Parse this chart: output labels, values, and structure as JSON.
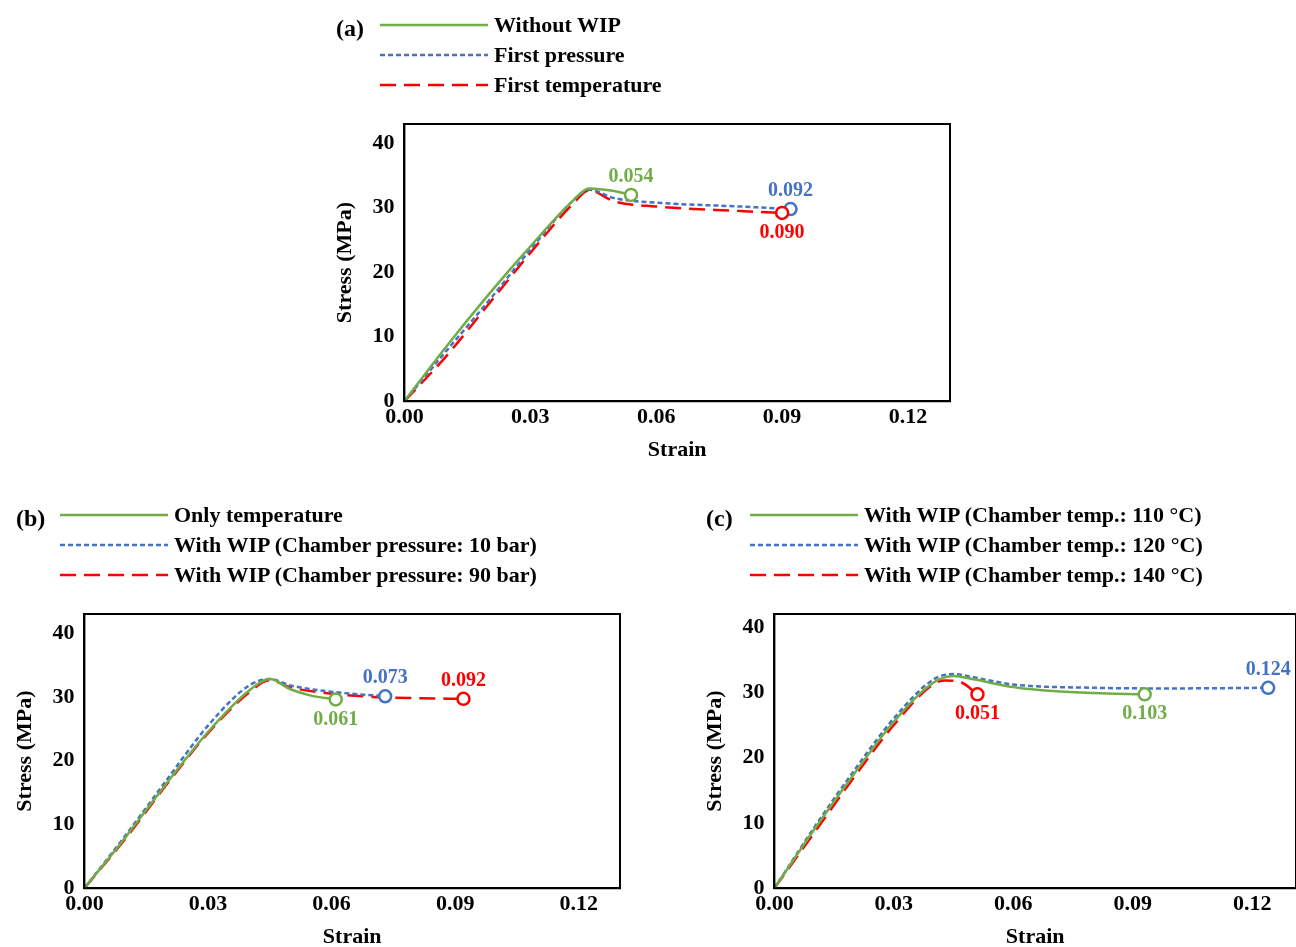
{
  "chart_data": [
    {
      "type": "line",
      "title": "(a)",
      "xlabel": "Strain",
      "ylabel": "Stress (MPa)",
      "xlim": [
        0,
        0.13
      ],
      "ylim": [
        0,
        43
      ],
      "xticks": [
        {
          "value": 0,
          "label": "0.00"
        },
        {
          "value": 0.03,
          "label": "0.03"
        },
        {
          "value": 0.06,
          "label": "0.06"
        },
        {
          "value": 0.09,
          "label": "0.09"
        },
        {
          "value": 0.12,
          "label": "0.12"
        }
      ],
      "yticks": [
        0,
        10,
        20,
        30,
        40
      ],
      "grid": false,
      "legend": "top",
      "series": [
        {
          "name": "Without WIP",
          "color": "#70ad47",
          "line_style": "solid",
          "x": [
            0,
            0.01,
            0.02,
            0.03,
            0.04,
            0.044,
            0.05,
            0.054
          ],
          "values": [
            0,
            8.5,
            16.5,
            24,
            31,
            33,
            32.6,
            32
          ]
        },
        {
          "name": "First pressure",
          "color": "#4472c4",
          "line_style": "dotted",
          "x": [
            0,
            0.01,
            0.02,
            0.03,
            0.04,
            0.044,
            0.05,
            0.06,
            0.08,
            0.092
          ],
          "values": [
            0,
            7.8,
            15.5,
            23.5,
            31,
            32.8,
            31.5,
            30.8,
            30.2,
            29.8
          ]
        },
        {
          "name": "First temperature",
          "color": "#ff0000",
          "line_style": "dashed",
          "x": [
            0,
            0.01,
            0.02,
            0.03,
            0.04,
            0.044,
            0.05,
            0.06,
            0.08,
            0.09
          ],
          "values": [
            0,
            7,
            15,
            23,
            30.5,
            32.7,
            31,
            30.2,
            29.5,
            29.2
          ]
        }
      ],
      "annotations": [
        {
          "text": "0.054",
          "x": 0.054,
          "y": 32
        },
        {
          "text": "0.092",
          "x": 0.092,
          "y": 29.8
        },
        {
          "text": "0.090",
          "x": 0.09,
          "y": 29.2
        }
      ]
    },
    {
      "type": "line",
      "title": "(b)",
      "xlabel": "Strain",
      "ylabel": "Stress (MPa)",
      "xlim": [
        0,
        0.13
      ],
      "ylim": [
        0,
        43
      ],
      "xticks": [
        {
          "value": 0,
          "label": "0.00"
        },
        {
          "value": 0.03,
          "label": "0.03"
        },
        {
          "value": 0.06,
          "label": "0.06"
        },
        {
          "value": 0.09,
          "label": "0.09"
        },
        {
          "value": 0.12,
          "label": "0.12"
        }
      ],
      "yticks": [
        0,
        10,
        20,
        30,
        40
      ],
      "grid": false,
      "legend": "top",
      "series": [
        {
          "name": "Only temperature",
          "color": "#70ad47",
          "line_style": "solid",
          "x": [
            0,
            0.01,
            0.02,
            0.03,
            0.04,
            0.045,
            0.05,
            0.055,
            0.061
          ],
          "values": [
            0,
            8,
            16.5,
            24.5,
            31,
            32.8,
            31.2,
            30.2,
            29.6
          ]
        },
        {
          "name": "With WIP (Chamber pressure: 10 bar)",
          "color": "#4472c4",
          "line_style": "dotted",
          "x": [
            0,
            0.01,
            0.02,
            0.03,
            0.04,
            0.045,
            0.05,
            0.06,
            0.073
          ],
          "values": [
            0,
            8.3,
            17,
            25.5,
            31.8,
            32.8,
            31.8,
            30.8,
            30.1
          ]
        },
        {
          "name": "With WIP (Chamber pressure: 90 bar)",
          "color": "#ff0000",
          "line_style": "dashed",
          "x": [
            0,
            0.01,
            0.02,
            0.03,
            0.04,
            0.045,
            0.05,
            0.06,
            0.07,
            0.08,
            0.092
          ],
          "values": [
            0,
            7.8,
            16.3,
            24.3,
            30.7,
            32.6,
            31.5,
            30.5,
            30,
            29.8,
            29.7
          ]
        }
      ],
      "annotations": [
        {
          "text": "0.061",
          "x": 0.061,
          "y": 29.6
        },
        {
          "text": "0.073",
          "x": 0.073,
          "y": 30.1
        },
        {
          "text": "0.092",
          "x": 0.092,
          "y": 29.7
        }
      ]
    },
    {
      "type": "line",
      "title": "(c)",
      "xlabel": "Strain",
      "ylabel": "Stress (MPa)",
      "xlim": [
        0,
        0.131
      ],
      "ylim": [
        0,
        42
      ],
      "xticks": [
        {
          "value": 0,
          "label": "0.00"
        },
        {
          "value": 0.03,
          "label": "0.03"
        },
        {
          "value": 0.06,
          "label": "0.06"
        },
        {
          "value": 0.09,
          "label": "0.09"
        },
        {
          "value": 0.12,
          "label": "0.12"
        }
      ],
      "yticks": [
        0,
        10,
        20,
        30,
        40
      ],
      "grid": false,
      "legend": "top",
      "series": [
        {
          "name": "With WIP (Chamber temp.: 110 °C)",
          "color": "#70ad47",
          "line_style": "solid",
          "x": [
            0,
            0.01,
            0.02,
            0.03,
            0.04,
            0.045,
            0.05,
            0.06,
            0.07,
            0.08,
            0.093
          ],
          "values": [
            0,
            9,
            17.5,
            25.5,
            31.5,
            32.5,
            32,
            30.8,
            30.2,
            29.9,
            29.7
          ]
        },
        {
          "name": "With WIP (Chamber temp.: 120 °C)",
          "color": "#4472c4",
          "line_style": "dotted",
          "x": [
            0,
            0.01,
            0.02,
            0.03,
            0.04,
            0.045,
            0.05,
            0.06,
            0.08,
            0.1,
            0.124
          ],
          "values": [
            0,
            9.3,
            18,
            26,
            32,
            32.8,
            32.3,
            31.2,
            30.7,
            30.6,
            30.7
          ]
        },
        {
          "name": "With WIP (Chamber temp.: 140 °C)",
          "color": "#ff0000",
          "line_style": "dashed",
          "x": [
            0,
            0.01,
            0.02,
            0.03,
            0.04,
            0.043,
            0.047,
            0.051
          ],
          "values": [
            0,
            8.5,
            17,
            25,
            31.3,
            31.8,
            31.5,
            29.7
          ]
        }
      ],
      "annotations": [
        {
          "text": "0.103",
          "x": 0.093,
          "y": 29.7
        },
        {
          "text": "0.124",
          "x": 0.124,
          "y": 30.7
        },
        {
          "text": "0.051",
          "x": 0.051,
          "y": 29.7
        }
      ]
    }
  ]
}
